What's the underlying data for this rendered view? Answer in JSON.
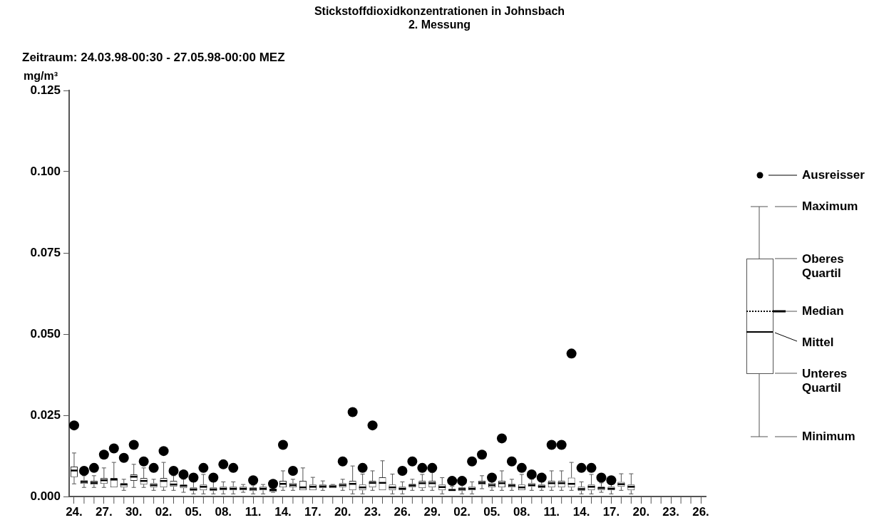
{
  "chart_data": {
    "type": "box",
    "title": "Stickstoffdioxidkonzentrationen in Johnsbach",
    "subtitle": "2. Messung",
    "ylabel": "mg/m³",
    "annotations": [
      "Zeitraum: 24.03.98-00:30 - 27.05.98-00:00 MEZ",
      "Ausreisser",
      "Maximum",
      "Oberes Quartil",
      "Median",
      "Mittel",
      "Unteres Quartil",
      "Minimum"
    ],
    "categories": [
      "24.",
      null,
      null,
      "27.",
      null,
      null,
      "30.",
      null,
      null,
      "02.",
      null,
      null,
      "05.",
      null,
      null,
      "08.",
      null,
      null,
      "11.",
      null,
      null,
      "14.",
      null,
      null,
      "17.",
      null,
      null,
      "20.",
      null,
      null,
      "23.",
      null,
      null,
      "26.",
      null,
      null,
      "29.",
      null,
      null,
      "02.",
      null,
      null,
      "05.",
      null,
      null,
      "08.",
      null,
      null,
      "11.",
      null,
      null,
      "14.",
      null,
      null,
      "17.",
      null,
      null,
      "20.",
      null,
      null,
      "23.",
      null,
      null,
      "26."
    ],
    "ylim": [
      0,
      0.125
    ],
    "yticks": [
      {
        "value": 0,
        "label": "0.000"
      },
      {
        "value": 0.025,
        "label": "0.025"
      },
      {
        "value": 0.05,
        "label": "0.050"
      },
      {
        "value": 0.075,
        "label": "0.075"
      },
      {
        "value": 0.1,
        "label": "0.100"
      },
      {
        "value": 0.125,
        "label": "0.125"
      }
    ],
    "grid": false,
    "boxes": [
      {
        "low": 0.0039,
        "q1": 0.006,
        "median": 0.008,
        "q3": 0.0092,
        "high": 0.0134,
        "outliers": [
          0.0219
        ]
      },
      {
        "low": 0.0028,
        "q1": 0.0039,
        "median": 0.0045,
        "q3": 0.005,
        "high": 0.0064,
        "outliers": [
          0.0079
        ]
      },
      {
        "low": 0.0028,
        "q1": 0.0037,
        "median": 0.0042,
        "q3": 0.0048,
        "high": 0.0064,
        "outliers": [
          0.0088
        ]
      },
      {
        "low": 0.0028,
        "q1": 0.0039,
        "median": 0.005,
        "q3": 0.0057,
        "high": 0.0088,
        "outliers": [
          0.0129
        ]
      },
      {
        "low": 0.0028,
        "q1": 0.0028,
        "median": 0.0052,
        "q3": 0.0057,
        "high": 0.0105,
        "outliers": [
          0.0148
        ]
      },
      {
        "low": 0.0019,
        "q1": 0.0028,
        "median": 0.0037,
        "q3": 0.0041,
        "high": 0.0053,
        "outliers": [
          0.0119
        ]
      },
      {
        "low": 0.0028,
        "q1": 0.0048,
        "median": 0.0061,
        "q3": 0.0068,
        "high": 0.0099,
        "outliers": [
          0.0159
        ]
      },
      {
        "low": 0.0028,
        "q1": 0.0037,
        "median": 0.0048,
        "q3": 0.0057,
        "high": 0.0088,
        "outliers": [
          0.0108
        ]
      },
      {
        "low": 0.0019,
        "q1": 0.0028,
        "median": 0.0035,
        "q3": 0.0041,
        "high": 0.0053,
        "outliers": [
          0.0088
        ]
      },
      {
        "low": 0.0019,
        "q1": 0.0028,
        "median": 0.0048,
        "q3": 0.0057,
        "high": 0.0105,
        "outliers": [
          0.014
        ]
      },
      {
        "low": 0.0019,
        "q1": 0.003,
        "median": 0.0037,
        "q3": 0.0048,
        "high": 0.0064,
        "outliers": [
          0.0079
        ]
      },
      {
        "low": 0.0013,
        "q1": 0.0026,
        "median": 0.0033,
        "q3": 0.0037,
        "high": 0.0053,
        "outliers": [
          0.0068
        ]
      },
      {
        "low": 0.0008,
        "q1": 0.0017,
        "median": 0.0022,
        "q3": 0.0028,
        "high": 0.0045,
        "outliers": [
          0.0058
        ]
      },
      {
        "low": 0.0008,
        "q1": 0.0019,
        "median": 0.003,
        "q3": 0.0037,
        "high": 0.0068,
        "outliers": [
          0.0088
        ]
      },
      {
        "low": 0.0008,
        "q1": 0.0017,
        "median": 0.0022,
        "q3": 0.0028,
        "high": 0.0045,
        "outliers": [
          0.0058
        ]
      },
      {
        "low": 0.0008,
        "q1": 0.0019,
        "median": 0.0024,
        "q3": 0.003,
        "high": 0.0045,
        "outliers": [
          0.0099
        ]
      },
      {
        "low": 0.0008,
        "q1": 0.0019,
        "median": 0.0024,
        "q3": 0.003,
        "high": 0.0045,
        "outliers": [
          0.0088
        ]
      },
      {
        "low": 0.0013,
        "q1": 0.0019,
        "median": 0.0024,
        "q3": 0.003,
        "high": 0.0037
      },
      {
        "low": 0.0008,
        "q1": 0.0017,
        "median": 0.0023,
        "q3": 0.0028,
        "high": 0.0035,
        "outliers": [
          0.005
        ]
      },
      {
        "low": 0.0008,
        "q1": 0.0019,
        "median": 0.0024,
        "q3": 0.003,
        "high": 0.0037
      },
      {
        "low": 0.0013,
        "q1": 0.0015,
        "median": 0.002,
        "q3": 0.0024,
        "high": 0.003,
        "outliers": [
          0.0039
        ]
      },
      {
        "low": 0.0019,
        "q1": 0.0028,
        "median": 0.0039,
        "q3": 0.0048,
        "high": 0.0079,
        "outliers": [
          0.0159
        ]
      },
      {
        "low": 0.0019,
        "q1": 0.0028,
        "median": 0.0035,
        "q3": 0.0041,
        "high": 0.0053,
        "outliers": [
          0.0079
        ]
      },
      {
        "low": 0.0019,
        "q1": 0.0019,
        "median": 0.0028,
        "q3": 0.0048,
        "high": 0.0088
      },
      {
        "low": 0.0019,
        "q1": 0.0019,
        "median": 0.003,
        "q3": 0.0037,
        "high": 0.0059
      },
      {
        "low": 0.0019,
        "q1": 0.0026,
        "median": 0.0031,
        "q3": 0.0037,
        "high": 0.0048
      },
      {
        "low": 0.0026,
        "q1": 0.0026,
        "median": 0.0031,
        "q3": 0.0036,
        "high": 0.0037
      },
      {
        "low": 0.0019,
        "q1": 0.0028,
        "median": 0.0035,
        "q3": 0.0041,
        "high": 0.0053,
        "outliers": [
          0.0108
        ]
      },
      {
        "low": 0.0008,
        "q1": 0.0019,
        "median": 0.0039,
        "q3": 0.0048,
        "high": 0.0094,
        "outliers": [
          0.026
        ]
      },
      {
        "low": 0.0008,
        "q1": 0.0019,
        "median": 0.0028,
        "q3": 0.0037,
        "high": 0.0069,
        "outliers": [
          0.0088
        ]
      },
      {
        "low": 0.0019,
        "q1": 0.0028,
        "median": 0.0042,
        "q3": 0.0048,
        "high": 0.0079,
        "outliers": [
          0.0219
        ]
      },
      {
        "low": 0.0019,
        "q1": 0.0019,
        "median": 0.0042,
        "q3": 0.0059,
        "high": 0.011
      },
      {
        "low": 0.0008,
        "q1": 0.0019,
        "median": 0.0028,
        "q3": 0.0037,
        "high": 0.0069
      },
      {
        "low": 0.0008,
        "q1": 0.0019,
        "median": 0.0024,
        "q3": 0.003,
        "high": 0.0045,
        "outliers": [
          0.0079
        ]
      },
      {
        "low": 0.0019,
        "q1": 0.0028,
        "median": 0.0034,
        "q3": 0.0039,
        "high": 0.0053,
        "outliers": [
          0.0108
        ]
      },
      {
        "low": 0.0019,
        "q1": 0.0026,
        "median": 0.0041,
        "q3": 0.0048,
        "high": 0.0068,
        "outliers": [
          0.0088
        ]
      },
      {
        "low": 0.0019,
        "q1": 0.0028,
        "median": 0.0041,
        "q3": 0.0048,
        "high": 0.0074,
        "outliers": [
          0.0088
        ]
      },
      {
        "low": 0.0008,
        "q1": 0.0019,
        "median": 0.0029,
        "q3": 0.0037,
        "high": 0.0058
      },
      {
        "low": 0.0017,
        "q1": 0.0017,
        "median": 0.002,
        "q3": 0.0023,
        "high": 0.0031,
        "outliers": [
          0.0048
        ]
      },
      {
        "low": 0.0008,
        "q1": 0.0017,
        "median": 0.0023,
        "q3": 0.0028,
        "high": 0.0035,
        "outliers": [
          0.0048
        ]
      },
      {
        "low": 0.0008,
        "q1": 0.0019,
        "median": 0.0024,
        "q3": 0.003,
        "high": 0.0045,
        "outliers": [
          0.0108
        ]
      },
      {
        "low": 0.0024,
        "q1": 0.0037,
        "median": 0.0042,
        "q3": 0.0048,
        "high": 0.0064,
        "outliers": [
          0.0129
        ]
      },
      {
        "low": 0.0019,
        "q1": 0.0028,
        "median": 0.0035,
        "q3": 0.0041,
        "high": 0.005,
        "outliers": [
          0.0058
        ]
      },
      {
        "low": 0.0019,
        "q1": 0.0028,
        "median": 0.0041,
        "q3": 0.0048,
        "high": 0.0079,
        "outliers": [
          0.0179
        ]
      },
      {
        "low": 0.0019,
        "q1": 0.0028,
        "median": 0.0034,
        "q3": 0.0039,
        "high": 0.0053,
        "outliers": [
          0.0108
        ]
      },
      {
        "low": 0.0019,
        "q1": 0.0019,
        "median": 0.0028,
        "q3": 0.0037,
        "high": 0.0068,
        "outliers": [
          0.0088
        ]
      },
      {
        "low": 0.0019,
        "q1": 0.003,
        "median": 0.0035,
        "q3": 0.0041,
        "high": 0.0053,
        "outliers": [
          0.0068
        ]
      },
      {
        "low": 0.0019,
        "q1": 0.0026,
        "median": 0.0031,
        "q3": 0.0037,
        "high": 0.0046,
        "outliers": [
          0.0058
        ]
      },
      {
        "low": 0.0019,
        "q1": 0.0028,
        "median": 0.0041,
        "q3": 0.0048,
        "high": 0.0079,
        "outliers": [
          0.0159
        ]
      },
      {
        "low": 0.0019,
        "q1": 0.0028,
        "median": 0.0041,
        "q3": 0.0048,
        "high": 0.0079,
        "outliers": [
          0.0159
        ]
      },
      {
        "low": 0.0019,
        "q1": 0.0028,
        "median": 0.0039,
        "q3": 0.0058,
        "high": 0.0105,
        "outliers": [
          0.044
        ]
      },
      {
        "low": 0.0008,
        "q1": 0.0017,
        "median": 0.0023,
        "q3": 0.003,
        "high": 0.0045,
        "outliers": [
          0.0088
        ]
      },
      {
        "low": 0.0008,
        "q1": 0.0019,
        "median": 0.003,
        "q3": 0.0037,
        "high": 0.0068,
        "outliers": [
          0.0088
        ]
      },
      {
        "low": 0.0013,
        "q1": 0.0019,
        "median": 0.0026,
        "q3": 0.003,
        "high": 0.0042,
        "outliers": [
          0.0058
        ]
      },
      {
        "low": 0.0008,
        "q1": 0.0019,
        "median": 0.0024,
        "q3": 0.003,
        "high": 0.004,
        "outliers": [
          0.005
        ]
      },
      {
        "low": 0.0019,
        "q1": 0.003,
        "median": 0.0038,
        "q3": 0.0045,
        "high": 0.007
      },
      {
        "low": 0.0008,
        "q1": 0.0019,
        "median": 0.003,
        "q3": 0.0037,
        "high": 0.007
      },
      null,
      null,
      null,
      null,
      null,
      null,
      null
    ]
  }
}
